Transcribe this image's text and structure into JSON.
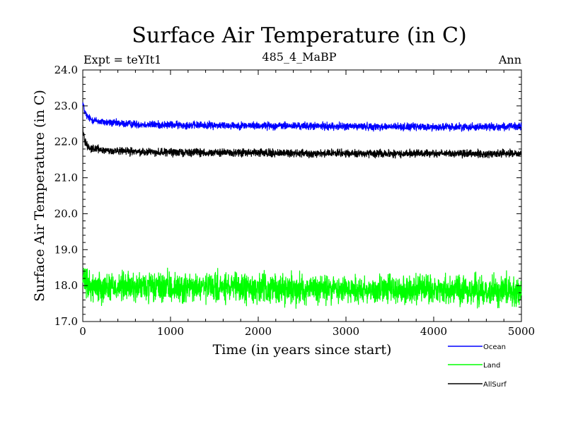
{
  "chart_data": {
    "type": "line",
    "title": "Surface Air Temperature (in C)",
    "subtitle_left": "Expt = teYIt1",
    "subtitle_center": "485_4_MaBP",
    "subtitle_right": "Ann",
    "xlabel": "Time (in years since start)",
    "ylabel": "Surface Air Temperature (in C)",
    "xlim": [
      0,
      5000
    ],
    "ylim": [
      17.0,
      24.0
    ],
    "x_ticks": [
      0,
      1000,
      2000,
      3000,
      4000,
      5000
    ],
    "x_tick_labels": [
      "0",
      "1000",
      "2000",
      "3000",
      "4000",
      "5000"
    ],
    "y_ticks": [
      17.0,
      18.0,
      19.0,
      20.0,
      21.0,
      22.0,
      23.0,
      24.0
    ],
    "y_tick_labels": [
      "17.0",
      "18.0",
      "19.0",
      "20.0",
      "21.0",
      "22.0",
      "23.0",
      "24.0"
    ],
    "legend_position": "bottom-right, outside plot",
    "series": [
      {
        "name": "Ocean",
        "color": "#0000ff",
        "x": [
          0,
          20,
          50,
          100,
          200,
          300,
          500,
          750,
          1000,
          1500,
          2000,
          2500,
          3000,
          3500,
          4000,
          4500,
          5000
        ],
        "values": [
          23.1,
          22.85,
          22.7,
          22.62,
          22.56,
          22.53,
          22.5,
          22.48,
          22.47,
          22.46,
          22.45,
          22.44,
          22.43,
          22.42,
          22.41,
          22.42,
          22.42
        ],
        "noise": 0.05
      },
      {
        "name": "Land",
        "color": "#00ff00",
        "x": [
          0,
          20,
          50,
          100,
          500,
          1000,
          1500,
          2000,
          2500,
          3000,
          3500,
          4000,
          4500,
          5000
        ],
        "values": [
          18.2,
          18.1,
          18.0,
          17.98,
          17.96,
          17.94,
          17.93,
          17.92,
          17.91,
          17.9,
          17.89,
          17.88,
          17.87,
          17.86
        ],
        "noise": 0.2
      },
      {
        "name": "AllSurf",
        "color": "#000000",
        "x": [
          0,
          20,
          50,
          100,
          200,
          300,
          500,
          750,
          1000,
          1500,
          2000,
          2500,
          3000,
          3500,
          4000,
          4500,
          5000
        ],
        "values": [
          22.4,
          22.05,
          21.9,
          21.82,
          21.78,
          21.75,
          21.73,
          21.72,
          21.71,
          21.7,
          21.69,
          21.68,
          21.68,
          21.67,
          21.67,
          21.67,
          21.67
        ],
        "noise": 0.05
      }
    ]
  }
}
